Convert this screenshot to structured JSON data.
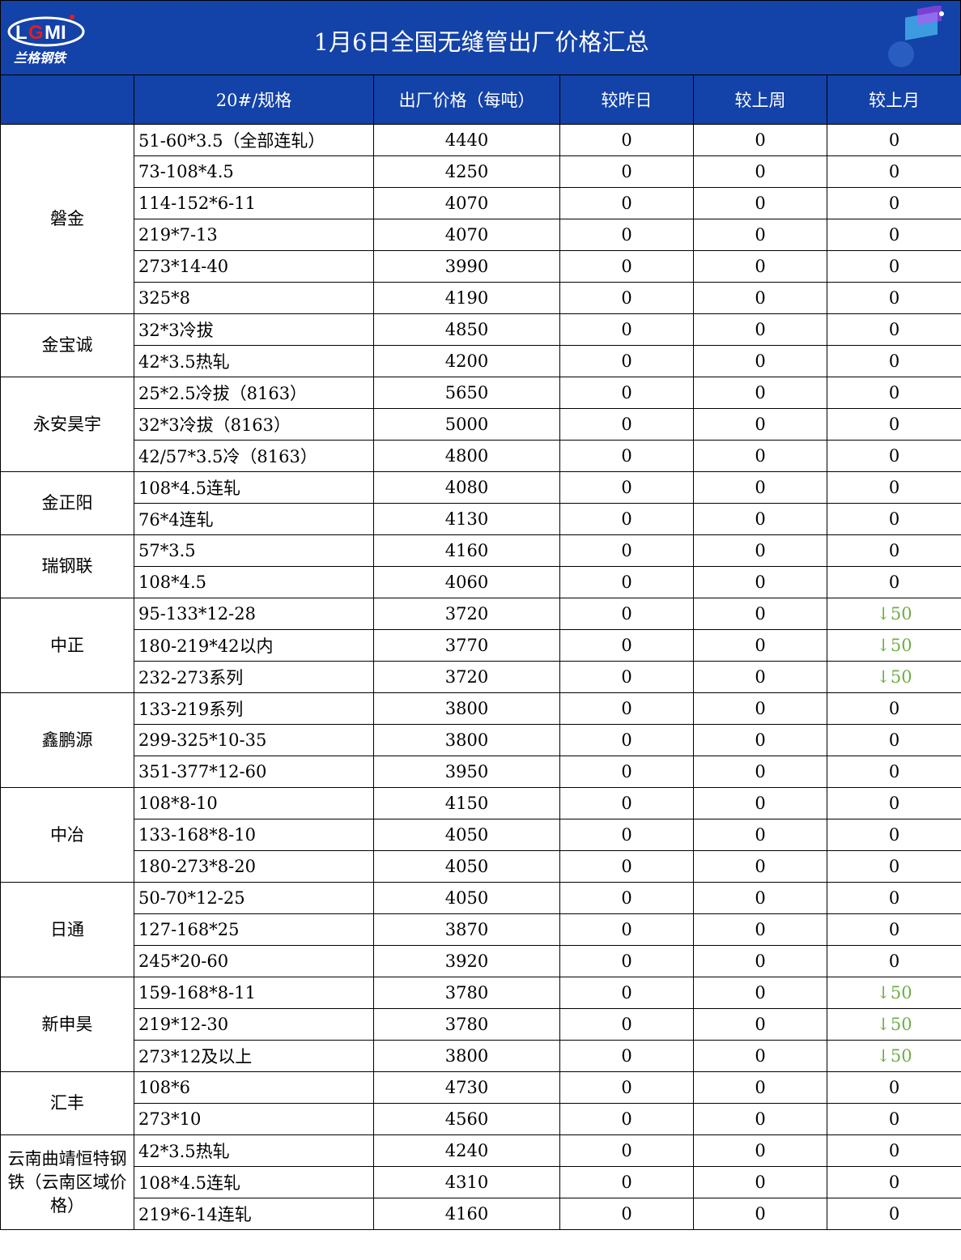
{
  "header": {
    "title": "1月6日全国无缝管出厂价格汇总",
    "logo_text": "LGMI",
    "logo_cn": "兰格钢铁"
  },
  "columns": [
    "",
    "20#/规格",
    "出厂价格（每吨）",
    "较昨日",
    "较上周",
    "较上月"
  ],
  "colors": {
    "header_bg": "#1342a8",
    "down": "#70ad47"
  },
  "groups": [
    {
      "company": "磐金",
      "rows": [
        [
          "51-60*3.5（全部连轧）",
          "4440",
          "0",
          "0",
          "0"
        ],
        [
          "73-108*4.5",
          "4250",
          "0",
          "0",
          "0"
        ],
        [
          "114-152*6-11",
          "4070",
          "0",
          "0",
          "0"
        ],
        [
          "219*7-13",
          "4070",
          "0",
          "0",
          "0"
        ],
        [
          "273*14-40",
          "3990",
          "0",
          "0",
          "0"
        ],
        [
          "325*8",
          "4190",
          "0",
          "0",
          "0"
        ]
      ]
    },
    {
      "company": "金宝诚",
      "rows": [
        [
          "32*3冷拔",
          "4850",
          "0",
          "0",
          "0"
        ],
        [
          "42*3.5热轧",
          "4200",
          "0",
          "0",
          "0"
        ]
      ]
    },
    {
      "company": "永安昊宇",
      "rows": [
        [
          "25*2.5冷拔（8163）",
          "5650",
          "0",
          "0",
          "0"
        ],
        [
          "32*3冷拔（8163）",
          "5000",
          "0",
          "0",
          "0"
        ],
        [
          "42/57*3.5冷（8163）",
          "4800",
          "0",
          "0",
          "0"
        ]
      ]
    },
    {
      "company": "金正阳",
      "rows": [
        [
          "108*4.5连轧",
          "4080",
          "0",
          "0",
          "0"
        ],
        [
          "76*4连轧",
          "4130",
          "0",
          "0",
          "0"
        ]
      ]
    },
    {
      "company": "瑞钢联",
      "rows": [
        [
          "57*3.5",
          "4160",
          "0",
          "0",
          "0"
        ],
        [
          "108*4.5",
          "4060",
          "0",
          "0",
          "0"
        ]
      ]
    },
    {
      "company": "中正",
      "rows": [
        [
          "95-133*12-28",
          "3720",
          "0",
          "0",
          "↓50"
        ],
        [
          "180-219*42以内",
          "3770",
          "0",
          "0",
          "↓50"
        ],
        [
          "232-273系列",
          "3720",
          "0",
          "0",
          "↓50"
        ]
      ]
    },
    {
      "company": "鑫鹏源",
      "rows": [
        [
          "133-219系列",
          "3800",
          "0",
          "0",
          "0"
        ],
        [
          "299-325*10-35",
          "3800",
          "0",
          "0",
          "0"
        ],
        [
          "351-377*12-60",
          "3950",
          "0",
          "0",
          "0"
        ]
      ]
    },
    {
      "company": "中冶",
      "rows": [
        [
          "108*8-10",
          "4150",
          "0",
          "0",
          "0"
        ],
        [
          "133-168*8-10",
          "4050",
          "0",
          "0",
          "0"
        ],
        [
          "180-273*8-20",
          "4050",
          "0",
          "0",
          "0"
        ]
      ]
    },
    {
      "company": "日通",
      "rows": [
        [
          "50-70*12-25",
          "4050",
          "0",
          "0",
          "0"
        ],
        [
          "127-168*25",
          "3870",
          "0",
          "0",
          "0"
        ],
        [
          "245*20-60",
          "3920",
          "0",
          "0",
          "0"
        ]
      ]
    },
    {
      "company": "新申昊",
      "rows": [
        [
          "159-168*8-11",
          "3780",
          "0",
          "0",
          "↓50"
        ],
        [
          "219*12-30",
          "3780",
          "0",
          "0",
          "↓50"
        ],
        [
          "273*12及以上",
          "3800",
          "0",
          "0",
          "↓50"
        ]
      ]
    },
    {
      "company": "汇丰",
      "rows": [
        [
          "108*6",
          "4730",
          "0",
          "0",
          "0"
        ],
        [
          "273*10",
          "4560",
          "0",
          "0",
          "0"
        ]
      ]
    },
    {
      "company": "云南曲靖恒特钢铁（云南区域价格）",
      "rows": [
        [
          "42*3.5热轧",
          "4240",
          "0",
          "0",
          "0"
        ],
        [
          "108*4.5连轧",
          "4310",
          "0",
          "0",
          "0"
        ],
        [
          "219*6-14连轧",
          "4160",
          "0",
          "0",
          "0"
        ]
      ]
    }
  ]
}
